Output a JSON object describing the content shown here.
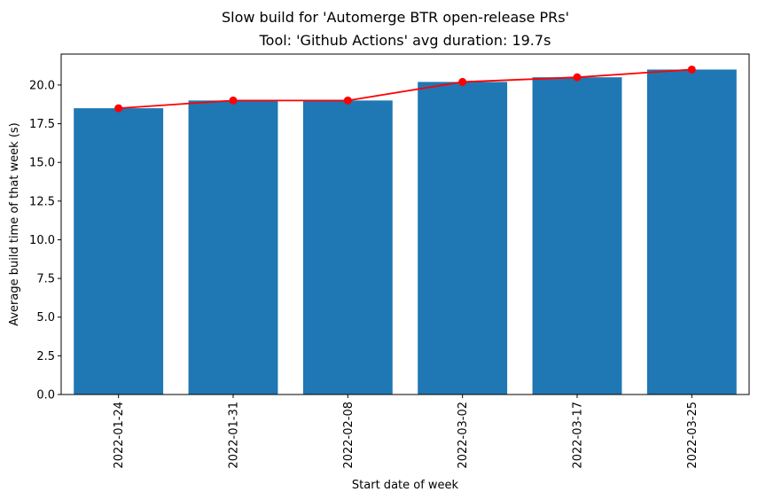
{
  "chart_data": {
    "type": "bar",
    "title": "Slow build for 'Automerge BTR open-release PRs'",
    "subtitle": "Tool: 'Github Actions' avg duration: 19.7s",
    "xlabel": "Start date of week",
    "ylabel": "Average build time of that week (s)",
    "categories": [
      "2022-01-24",
      "2022-01-31",
      "2022-02-08",
      "2022-03-02",
      "2022-03-17",
      "2022-03-25"
    ],
    "series": [
      {
        "type": "bar",
        "values": [
          18.5,
          19.0,
          19.0,
          20.2,
          20.5,
          21.0
        ],
        "color": "#1f77b4"
      },
      {
        "type": "line",
        "values": [
          18.5,
          19.0,
          19.0,
          20.2,
          20.5,
          21.0
        ],
        "color": "#ff0000",
        "marker": "circle"
      }
    ],
    "ylim": [
      0,
      22.0
    ],
    "yticks": [
      0.0,
      2.5,
      5.0,
      7.5,
      10.0,
      12.5,
      15.0,
      17.5,
      20.0
    ],
    "ytick_labels": [
      "0.0",
      "2.5",
      "5.0",
      "7.5",
      "10.0",
      "12.5",
      "15.0",
      "17.5",
      "20.0"
    ],
    "grid": false,
    "legend": "none"
  }
}
